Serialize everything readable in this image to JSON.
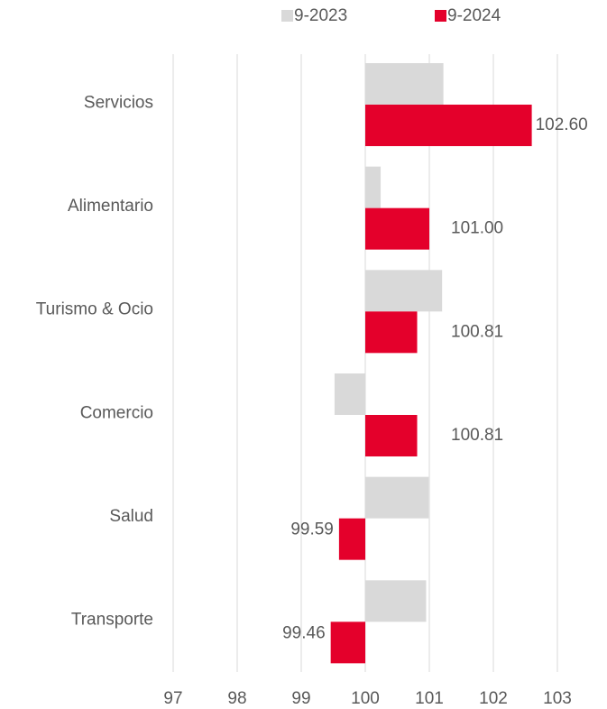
{
  "chart_data": {
    "type": "hbar",
    "categories": [
      "Servicios",
      "Alimentario",
      "Turismo & Ocio",
      "Comercio",
      "Salud",
      "Transporte"
    ],
    "baseline": 100,
    "series": [
      {
        "name": "9-2023",
        "color": "#d9d9d9",
        "values": [
          101.22,
          100.24,
          101.2,
          99.52,
          100.99,
          100.95
        ]
      },
      {
        "name": "9-2024",
        "color": "#e4002b",
        "values": [
          102.6,
          101,
          100.81,
          100.81,
          99.59,
          99.46
        ],
        "value_labels": [
          "102.60",
          "101.00",
          "100.81",
          "100.81",
          "99.59",
          "99.46"
        ]
      }
    ],
    "xlim": [
      97,
      103
    ],
    "xticks": [
      97,
      98,
      99,
      100,
      101,
      102,
      103
    ],
    "grid": true
  }
}
